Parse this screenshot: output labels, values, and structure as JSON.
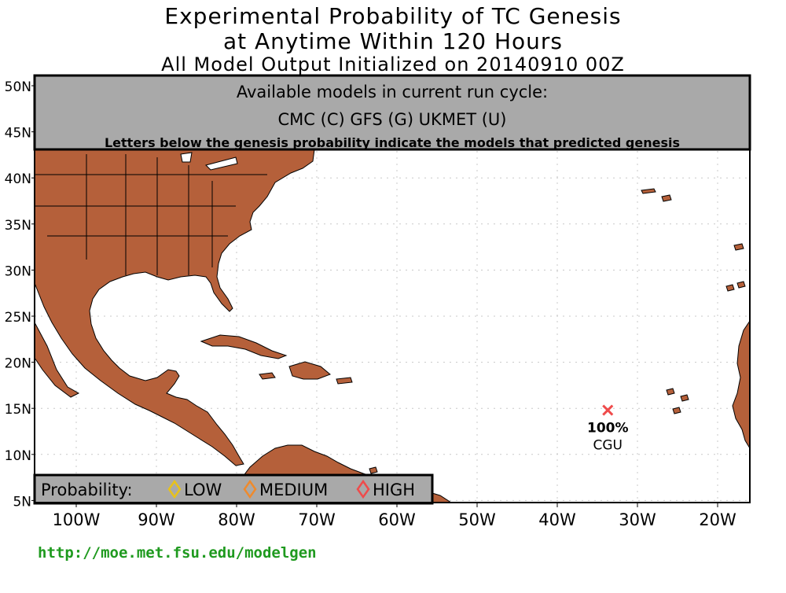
{
  "title": {
    "line1": "Experimental Probability of TC Genesis",
    "line2": "at Anytime Within 120 Hours",
    "line3": "All Model Output Initialized on 20140910 00Z"
  },
  "models_box": {
    "heading": "Available models in current run cycle:",
    "models": "CMC (C) GFS (G)  UKMET (U)",
    "note": "Letters below the genesis probability indicate the models that predicted genesis"
  },
  "axes": {
    "lat_labels": [
      "50N",
      "45N",
      "40N",
      "35N",
      "30N",
      "25N",
      "20N",
      "15N",
      "10N",
      "5N"
    ],
    "lon_labels": [
      "100W",
      "90W",
      "80W",
      "70W",
      "60W",
      "50W",
      "40W",
      "30W",
      "20W"
    ]
  },
  "legend": {
    "label": "Probability:",
    "items": [
      {
        "label": "LOW",
        "color": "#e8c21a"
      },
      {
        "label": "MEDIUM",
        "color": "#ef8a2c"
      },
      {
        "label": "HIGH",
        "color": "#ef4b4b"
      }
    ]
  },
  "markers": [
    {
      "lon": -33.7,
      "lat": 14.8,
      "probability": "100%",
      "models": "CGU",
      "color": "#ef4b4b"
    }
  ],
  "colors": {
    "land": "#b5603a",
    "ocean": "#ffffff",
    "panel": "#a9a9a9",
    "url": "#1f9a1f"
  },
  "footer_url": "http://moe.met.fsu.edu/modelgen"
}
